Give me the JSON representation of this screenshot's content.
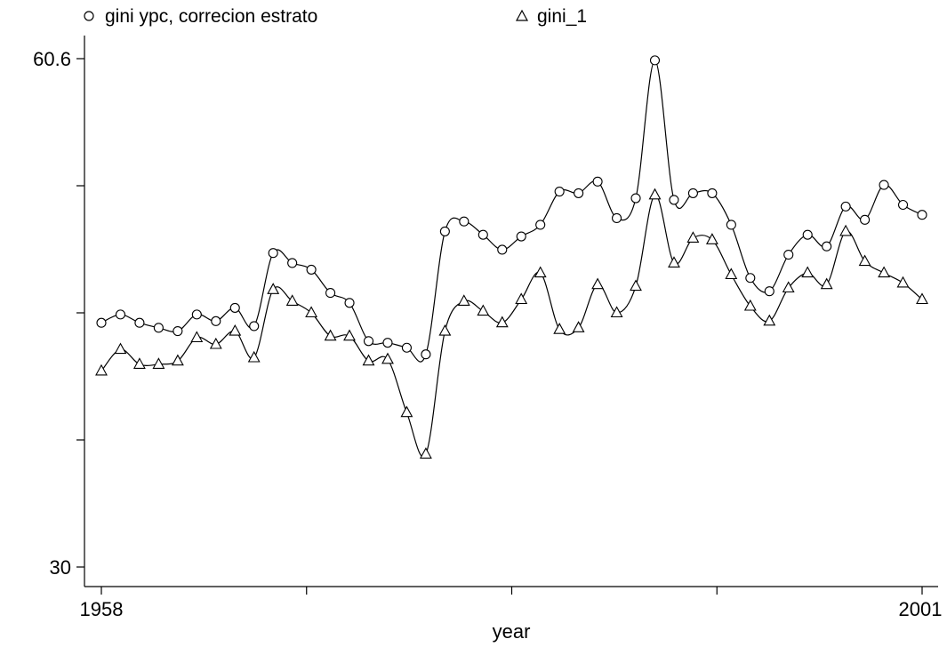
{
  "chart_data": {
    "type": "scatter",
    "title": "",
    "xlabel": "year",
    "ylabel": "",
    "xlim": [
      1958,
      2001
    ],
    "ylim": [
      30,
      60.6
    ],
    "x_tick_labels": [
      "1958",
      "2001"
    ],
    "y_tick_labels": [
      "30",
      "60.6"
    ],
    "grid": false,
    "legend": "top",
    "series": [
      {
        "name": "gini ypc, correcion estrato",
        "marker": "circle",
        "smoothed_line": true,
        "points": [
          [
            1958,
            44.7
          ],
          [
            1959,
            45.2
          ],
          [
            1960,
            44.7
          ],
          [
            1961,
            44.4
          ],
          [
            1962,
            44.2
          ],
          [
            1963,
            45.2
          ],
          [
            1964,
            44.8
          ],
          [
            1965,
            45.6
          ],
          [
            1966,
            44.5
          ],
          [
            1967,
            48.9
          ],
          [
            1968,
            48.3
          ],
          [
            1969,
            47.9
          ],
          [
            1970,
            46.5
          ],
          [
            1971,
            45.9
          ],
          [
            1972,
            43.6
          ],
          [
            1973,
            43.5
          ],
          [
            1974,
            43.2
          ],
          [
            1975,
            42.8
          ],
          [
            1976,
            50.2
          ],
          [
            1977,
            50.8
          ],
          [
            1978,
            50.0
          ],
          [
            1979,
            49.1
          ],
          [
            1980,
            49.9
          ],
          [
            1981,
            50.6
          ],
          [
            1982,
            52.6
          ],
          [
            1983,
            52.5
          ],
          [
            1984,
            53.2
          ],
          [
            1985,
            51.0
          ],
          [
            1986,
            52.2
          ],
          [
            1987,
            60.5
          ],
          [
            1988,
            52.1
          ],
          [
            1989,
            52.5
          ],
          [
            1990,
            52.5
          ],
          [
            1991,
            50.6
          ],
          [
            1992,
            47.4
          ],
          [
            1993,
            46.6
          ],
          [
            1994,
            48.8
          ],
          [
            1995,
            50.0
          ],
          [
            1996,
            49.3
          ],
          [
            1997,
            51.7
          ],
          [
            1998,
            50.9
          ],
          [
            1999,
            53.0
          ],
          [
            2000,
            51.8
          ],
          [
            2001,
            51.2
          ]
        ]
      },
      {
        "name": "gini_1",
        "marker": "triangle",
        "smoothed_line": true,
        "points": [
          [
            1958,
            41.8
          ],
          [
            1959,
            43.1
          ],
          [
            1960,
            42.2
          ],
          [
            1961,
            42.2
          ],
          [
            1962,
            42.4
          ],
          [
            1963,
            43.8
          ],
          [
            1964,
            43.4
          ],
          [
            1965,
            44.2
          ],
          [
            1966,
            42.6
          ],
          [
            1967,
            46.7
          ],
          [
            1968,
            46.0
          ],
          [
            1969,
            45.3
          ],
          [
            1970,
            43.9
          ],
          [
            1971,
            43.9
          ],
          [
            1972,
            42.4
          ],
          [
            1973,
            42.5
          ],
          [
            1974,
            39.3
          ],
          [
            1975,
            36.8
          ],
          [
            1976,
            44.2
          ],
          [
            1977,
            46.0
          ],
          [
            1978,
            45.4
          ],
          [
            1979,
            44.7
          ],
          [
            1980,
            46.1
          ],
          [
            1981,
            47.7
          ],
          [
            1982,
            44.3
          ],
          [
            1983,
            44.4
          ],
          [
            1984,
            47.0
          ],
          [
            1985,
            45.3
          ],
          [
            1986,
            46.9
          ],
          [
            1987,
            52.4
          ],
          [
            1988,
            48.3
          ],
          [
            1989,
            49.8
          ],
          [
            1990,
            49.7
          ],
          [
            1991,
            47.6
          ],
          [
            1992,
            45.7
          ],
          [
            1993,
            44.8
          ],
          [
            1994,
            46.8
          ],
          [
            1995,
            47.7
          ],
          [
            1996,
            47.0
          ],
          [
            1997,
            50.2
          ],
          [
            1998,
            48.4
          ],
          [
            1999,
            47.7
          ],
          [
            2000,
            47.1
          ],
          [
            2001,
            46.1
          ]
        ]
      }
    ]
  }
}
